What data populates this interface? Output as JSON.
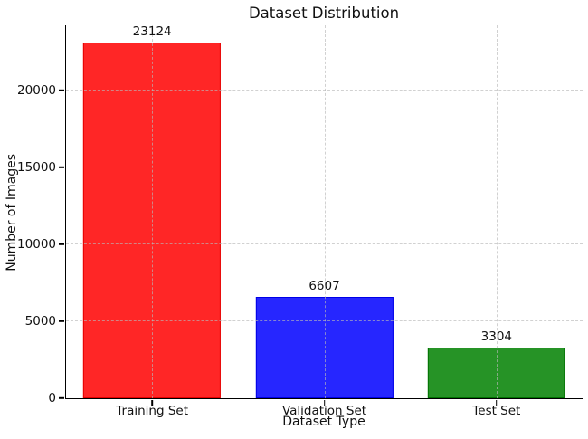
{
  "chart_data": {
    "type": "bar",
    "title": "Dataset Distribution",
    "xlabel": "Dataset Type",
    "ylabel": "Number of Images",
    "categories": [
      "Training Set",
      "Validation Set",
      "Test Set"
    ],
    "values": [
      23124,
      6607,
      3304
    ],
    "value_labels": [
      "23124",
      "6607",
      "3304"
    ],
    "bar_colors": [
      "#ff0000",
      "#0000ff",
      "#008000"
    ],
    "bar_edge_colors": [
      "#e60000",
      "#0000e6",
      "#007300"
    ],
    "bar_alpha": 0.85,
    "bar_width_fraction": 0.8,
    "yticks": [
      0,
      5000,
      10000,
      15000,
      20000
    ],
    "ytick_labels": [
      "0",
      "5000",
      "10000",
      "15000",
      "20000"
    ],
    "ylim": [
      0,
      24235
    ],
    "grid": "dashed",
    "grid_color": "#b9b9b9",
    "legend": "none",
    "text_color": "#111111",
    "background_color": "#ffffff"
  }
}
